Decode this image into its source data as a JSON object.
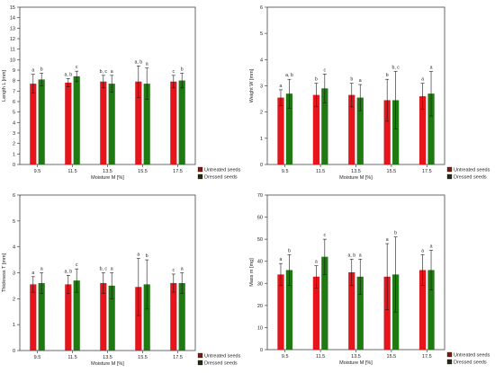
{
  "figure": {
    "colors": {
      "untreated": "#e8141b",
      "dressed": "#1f7a12",
      "error": "#1a1a1a",
      "axis": "#444444",
      "grid": "#d0d0d0"
    }
  },
  "chart_data": [
    {
      "type": "bar",
      "ylabel": "Length L [mm]",
      "xlabel": "Moisture M [%]",
      "ylim": [
        0,
        15
      ],
      "yticks": [
        0,
        1,
        2,
        3,
        4,
        5,
        6,
        7,
        8,
        9,
        10,
        11,
        12,
        13,
        14,
        15
      ],
      "categories": [
        "9.5",
        "11.5",
        "13.5",
        "15.5",
        "17.5"
      ],
      "series": [
        {
          "name": "Untreated seeds",
          "values": [
            7.7,
            7.8,
            7.9,
            7.9,
            7.9
          ],
          "errors": [
            0.9,
            0.4,
            0.6,
            1.5,
            0.6
          ],
          "letters": [
            "a",
            "a, b",
            "b, c",
            "a, b",
            "c"
          ]
        },
        {
          "name": "Dressed seeds",
          "values": [
            8.1,
            8.4,
            7.7,
            7.7,
            8.0
          ],
          "errors": [
            0.6,
            0.5,
            0.8,
            1.5,
            0.7
          ],
          "letters": [
            "b",
            "c",
            "a",
            "a",
            "b"
          ]
        }
      ],
      "legend": {
        "position": "bottom-right",
        "entries": [
          "Untreated seeds",
          "Dressed seeds"
        ]
      },
      "grid": false
    },
    {
      "type": "bar",
      "ylabel": "Weight W [mm]",
      "xlabel": "Moisture M [%]",
      "ylim": [
        0,
        6
      ],
      "yticks": [
        0,
        1,
        2,
        3,
        4,
        5,
        6
      ],
      "categories": [
        "9.5",
        "11.5",
        "13.5",
        "15.5",
        "17.5"
      ],
      "series": [
        {
          "name": "Untreated seeds",
          "values": [
            2.55,
            2.65,
            2.65,
            2.45,
            2.6
          ],
          "errors": [
            0.3,
            0.45,
            0.45,
            0.8,
            0.5
          ],
          "letters": [
            "a",
            "b",
            "b",
            "b",
            "a"
          ]
        },
        {
          "name": "Dressed seeds",
          "values": [
            2.7,
            2.9,
            2.55,
            2.45,
            2.7
          ],
          "errors": [
            0.55,
            0.55,
            0.5,
            1.1,
            0.85
          ],
          "letters": [
            "a, b",
            "c",
            "a",
            "b, c",
            "a"
          ]
        }
      ],
      "legend": {
        "position": "bottom-right",
        "entries": [
          "Untreated seeds",
          "Dressed seeds"
        ]
      },
      "grid": false
    },
    {
      "type": "bar",
      "ylabel": "Thickness T [mm]",
      "xlabel": "Moisture M [%]",
      "ylim": [
        0,
        6
      ],
      "yticks": [
        0,
        1,
        2,
        3,
        4,
        5,
        6
      ],
      "categories": [
        "9.5",
        "11.5",
        "13.5",
        "15.5",
        "17.5"
      ],
      "series": [
        {
          "name": "Untreated seeds",
          "values": [
            2.55,
            2.55,
            2.6,
            2.45,
            2.6
          ],
          "errors": [
            0.3,
            0.35,
            0.4,
            1.1,
            0.35
          ],
          "letters": [
            "a",
            "a, b",
            "b, c",
            "a",
            "c"
          ]
        },
        {
          "name": "Dressed seeds",
          "values": [
            2.6,
            2.7,
            2.5,
            2.55,
            2.6
          ],
          "errors": [
            0.4,
            0.45,
            0.5,
            0.95,
            0.4
          ],
          "letters": [
            "a",
            "c",
            "a",
            "b",
            "a"
          ]
        }
      ],
      "legend": {
        "position": "bottom-right",
        "entries": [
          "Untreated seeds",
          "Dressed seeds"
        ]
      },
      "grid": false
    },
    {
      "type": "bar",
      "ylabel": "Mass m [mg]",
      "xlabel": "Moisture M [%]",
      "ylim": [
        0,
        70
      ],
      "yticks": [
        0,
        10,
        20,
        30,
        40,
        50,
        60,
        70
      ],
      "categories": [
        "9.5",
        "11.5",
        "13.5",
        "15.5",
        "17.5"
      ],
      "series": [
        {
          "name": "Untreated seeds",
          "values": [
            34,
            33,
            35,
            33,
            36
          ],
          "errors": [
            5,
            5,
            6,
            15,
            7
          ],
          "letters": [
            "a",
            "a",
            "a, b",
            "a",
            "a"
          ]
        },
        {
          "name": "Dressed seeds",
          "values": [
            36,
            42,
            33,
            34,
            36
          ],
          "errors": [
            7,
            8,
            8,
            17,
            9
          ],
          "letters": [
            "b",
            "c",
            "a",
            "b",
            "a"
          ]
        }
      ],
      "legend": {
        "position": "bottom-right",
        "entries": [
          "Untreated seeds",
          "Dressed seeds"
        ]
      },
      "grid": false
    }
  ]
}
